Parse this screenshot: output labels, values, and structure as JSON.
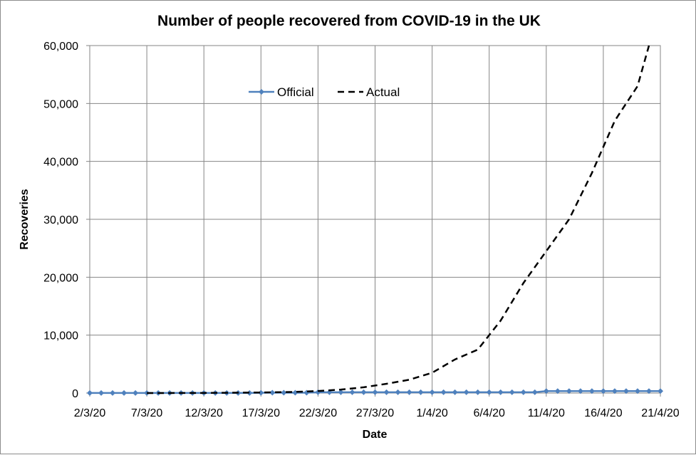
{
  "chart_data": {
    "type": "line",
    "title": "Number of people recovered from COVID-19 in the UK",
    "xlabel": "Date",
    "ylabel": "Recoveries",
    "ylim": [
      0,
      60000
    ],
    "yticks": [
      0,
      10000,
      20000,
      30000,
      40000,
      50000,
      60000
    ],
    "ytick_labels": [
      "0",
      "10,000",
      "20,000",
      "30,000",
      "40,000",
      "50,000",
      "60,000"
    ],
    "xlim": [
      "2/3/20",
      "21/4/20"
    ],
    "xtick_labels": [
      "2/3/20",
      "7/3/20",
      "12/3/20",
      "17/3/20",
      "22/3/20",
      "27/3/20",
      "1/4/20",
      "6/4/20",
      "11/4/20",
      "16/4/20",
      "21/4/20"
    ],
    "grid": true,
    "legend_position": "top-center",
    "series": [
      {
        "name": "Official",
        "color": "#4f81bd",
        "style": "solid-diamond-markers",
        "x": [
          "2/3/20",
          "3/3/20",
          "4/3/20",
          "5/3/20",
          "6/3/20",
          "7/3/20",
          "8/3/20",
          "9/3/20",
          "10/3/20",
          "11/3/20",
          "12/3/20",
          "13/3/20",
          "14/3/20",
          "15/3/20",
          "16/3/20",
          "17/3/20",
          "18/3/20",
          "19/3/20",
          "20/3/20",
          "21/3/20",
          "22/3/20",
          "23/3/20",
          "24/3/20",
          "25/3/20",
          "26/3/20",
          "27/3/20",
          "28/3/20",
          "29/3/20",
          "30/3/20",
          "31/3/20",
          "1/4/20",
          "2/4/20",
          "3/4/20",
          "4/4/20",
          "5/4/20",
          "6/4/20",
          "7/4/20",
          "8/4/20",
          "9/4/20",
          "10/4/20",
          "11/4/20",
          "12/4/20",
          "13/4/20",
          "14/4/20",
          "15/4/20",
          "16/4/20",
          "17/4/20",
          "18/4/20",
          "19/4/20",
          "20/4/20",
          "21/4/20"
        ],
        "values": [
          8,
          8,
          8,
          8,
          8,
          8,
          18,
          18,
          18,
          18,
          18,
          18,
          18,
          18,
          18,
          52,
          65,
          65,
          65,
          65,
          135,
          135,
          135,
          135,
          135,
          135,
          135,
          135,
          135,
          135,
          135,
          135,
          135,
          135,
          135,
          135,
          135,
          135,
          135,
          135,
          344,
          344,
          344,
          344,
          344,
          344,
          344,
          344,
          344,
          344,
          344
        ]
      },
      {
        "name": "Actual",
        "color": "#000000",
        "style": "dashed",
        "x": [
          "7/3/20",
          "12/3/20",
          "17/3/20",
          "20/3/20",
          "22/3/20",
          "24/3/20",
          "26/3/20",
          "28/3/20",
          "30/3/20",
          "1/4/20",
          "3/4/20",
          "5/4/20",
          "7/4/20",
          "9/4/20",
          "11/4/20",
          "13/4/20",
          "15/4/20",
          "17/4/20",
          "19/4/20",
          "20/4/20"
        ],
        "values": [
          0,
          20,
          100,
          200,
          350,
          600,
          1000,
          1600,
          2300,
          3500,
          5800,
          7500,
          12500,
          19000,
          24500,
          30000,
          38000,
          47000,
          53000,
          60000
        ]
      }
    ]
  }
}
